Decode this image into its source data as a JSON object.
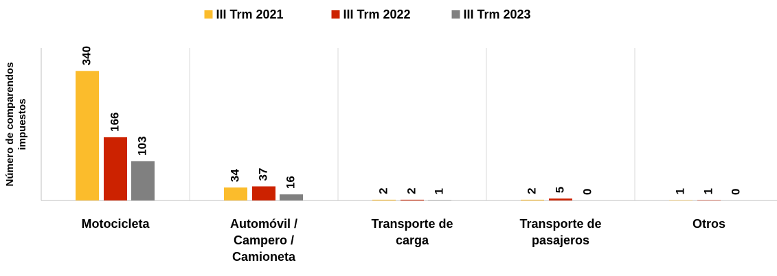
{
  "chart_data": {
    "type": "bar",
    "y_label": "Número de comparendos impuestos",
    "categories": [
      "Motocicleta",
      "Automóvil / Campero / Camioneta",
      "Transporte de carga",
      "Transporte de pasajeros",
      "Otros"
    ],
    "series": [
      {
        "name": "III Trm 2021",
        "color": "#fbbc2c",
        "values": [
          340,
          34,
          2,
          2,
          1
        ]
      },
      {
        "name": "III Trm 2022",
        "color": "#cc2200",
        "values": [
          166,
          37,
          2,
          5,
          1
        ]
      },
      {
        "name": "III Trm 2023",
        "color": "#808080",
        "values": [
          103,
          16,
          1,
          0,
          0
        ]
      }
    ],
    "ylim": [
      0,
      400
    ],
    "legend": "top"
  }
}
